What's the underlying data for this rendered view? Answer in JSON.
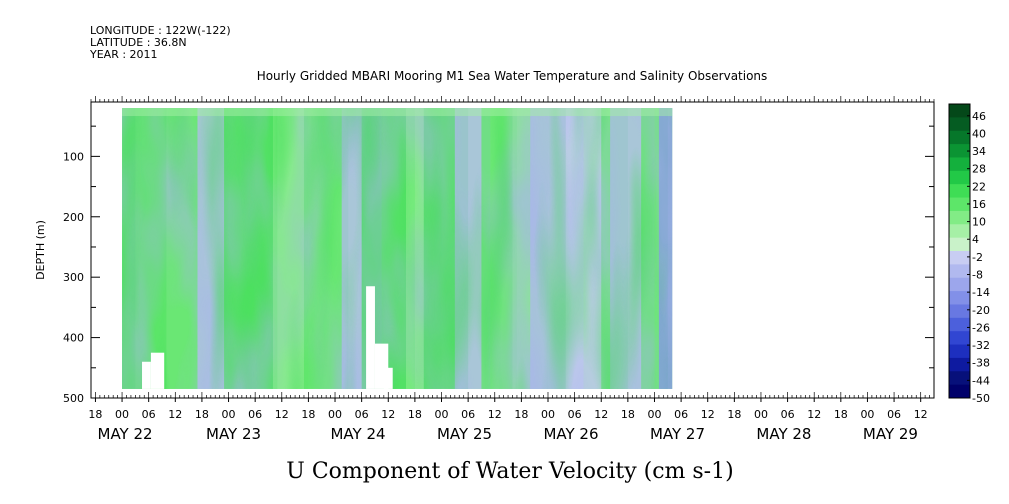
{
  "header": {
    "longitude": "LONGITUDE : 122W(-122)",
    "latitude": "LATITUDE : 36.8N",
    "year": "YEAR : 2011"
  },
  "chart_data": {
    "type": "heatmap",
    "title": "Hourly Gridded MBARI Mooring M1 Sea Water Temperature and Salinity Observations",
    "xlabel": "",
    "ylabel": "DEPTH (m)",
    "caption": "U Component of Water Velocity (cm s-1)",
    "y_ticks": [
      "100",
      "200",
      "300",
      "400",
      "500"
    ],
    "ylim": [
      500,
      10
    ],
    "x_hour_labels": [
      "18",
      "00",
      "06",
      "12",
      "18",
      "00",
      "06",
      "12",
      "18",
      "00",
      "06",
      "12",
      "18",
      "00",
      "06",
      "12",
      "18",
      "00",
      "06",
      "12",
      "18",
      "00",
      "06",
      "12",
      "18",
      "00",
      "06",
      "12",
      "18",
      "00",
      "06",
      "12"
    ],
    "x_day_labels": [
      "MAY 22",
      "MAY 23",
      "MAY 24",
      "MAY 25",
      "MAY 26",
      "MAY 27",
      "MAY 28",
      "MAY 29"
    ],
    "xlim": [
      "2011-05-21 17:00",
      "2011-05-29 15:00"
    ],
    "data_extent": {
      "start": "2011-05-22 00:00",
      "end": "2011-05-27 04:00",
      "depth_top": 20,
      "depth_bottom": 485
    },
    "colorbar": {
      "labels": [
        "46",
        "40",
        "34",
        "28",
        "22",
        "16",
        "10",
        "4",
        "-2",
        "-8",
        "-14",
        "-20",
        "-26",
        "-32",
        "-38",
        "-44",
        "-50"
      ],
      "range": [
        -50,
        50
      ],
      "negative_colors": [
        "#c8cdf2",
        "#b1b9ef",
        "#9ca6ec",
        "#8290e8",
        "#6878e2",
        "#4c60dc",
        "#3146d2",
        "#1d2fbf",
        "#0e1aa0",
        "#07107a",
        "#00006a"
      ],
      "positive_colors": [
        "#c9f2c9",
        "#a6f0a6",
        "#82ec86",
        "#5de669",
        "#3fdd55",
        "#22c947",
        "#14b03d",
        "#0b9433",
        "#06772a",
        "#055c22",
        "#044819"
      ]
    },
    "series": [
      {
        "values_cm_s": "depth-time field of eastward velocity, mostly between -10 and +16 cm/s; positive (green) bands near May 22 12h, May 23 06h, May 24 12h, May 25 00h; negative (blue) bands near May 24 06h, May 25 06h, May 26 00h-12h, May 26 18h, May 27 03h"
      }
    ]
  }
}
